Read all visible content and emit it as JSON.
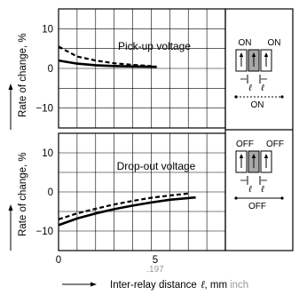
{
  "chart_data": [
    {
      "type": "line",
      "title": "Pick-up voltage",
      "ylabel": "Rate of change, %",
      "xlim": [
        0,
        9
      ],
      "ylim": [
        -15,
        15
      ],
      "yticks": [
        10,
        0,
        -10
      ],
      "grid": true,
      "series": [
        {
          "style": "dashed",
          "x": [
            0,
            1,
            2,
            3,
            4,
            5
          ],
          "y": [
            5.5,
            3.0,
            2.0,
            1.3,
            0.9,
            0.6
          ]
        },
        {
          "style": "solid",
          "x": [
            0,
            1,
            2,
            3,
            4,
            5.3
          ],
          "y": [
            2.0,
            1.2,
            0.8,
            0.6,
            0.5,
            0.4
          ]
        }
      ]
    },
    {
      "type": "line",
      "title": "Drop-out voltage",
      "ylabel": "Rate of change, %",
      "xlim": [
        0,
        9
      ],
      "ylim": [
        -15,
        15
      ],
      "yticks": [
        10,
        0,
        -10
      ],
      "grid": true,
      "xticks": [
        "0",
        "5"
      ],
      "xtick_sub": ".197",
      "xlabel": "Inter-relay distance",
      "xlabel_symbol": "ℓ",
      "xlabel_unit": ", mm",
      "xlabel_unit2": "inch",
      "series": [
        {
          "style": "dashed",
          "x": [
            0,
            1,
            2,
            3,
            4,
            5,
            6,
            7
          ],
          "y": [
            -7,
            -5.5,
            -4.3,
            -3.2,
            -2.3,
            -1.5,
            -0.9,
            -0.4
          ]
        },
        {
          "style": "solid",
          "x": [
            0,
            1,
            2,
            3,
            4,
            5,
            6,
            7.4
          ],
          "y": [
            -8.5,
            -6.8,
            -5.5,
            -4.4,
            -3.5,
            -2.7,
            -2.0,
            -1.4
          ]
        }
      ]
    }
  ],
  "diagrams": {
    "top": {
      "labels": [
        "ON",
        "ON"
      ],
      "ell": [
        "ℓ",
        "ℓ"
      ],
      "bottom_label": "ON"
    },
    "bottom": {
      "labels": [
        "OFF",
        "OFF"
      ],
      "ell": [
        "ℓ",
        "ℓ"
      ],
      "bottom_label": "OFF"
    }
  }
}
